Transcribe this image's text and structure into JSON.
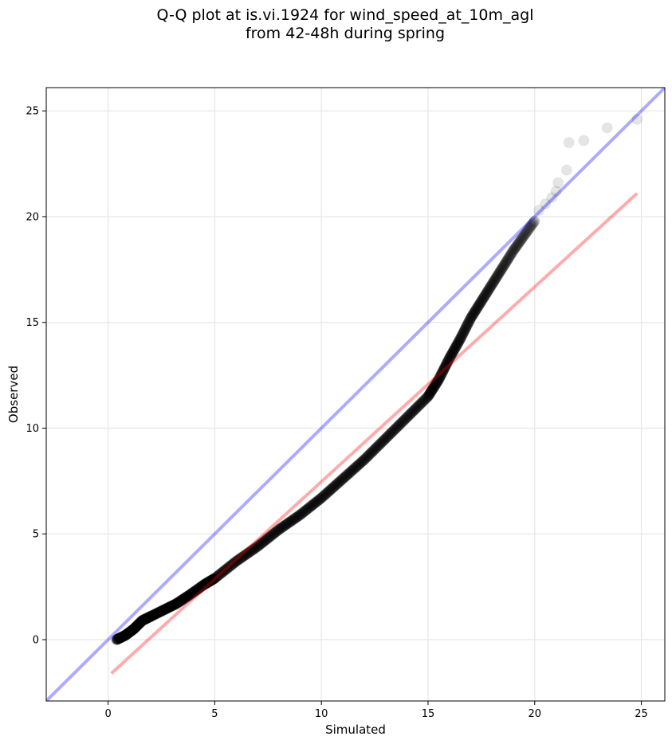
{
  "chart_data": {
    "type": "scatter",
    "title_line1": "Q-Q plot at is.vi.1924 for wind_speed_at_10m_agl",
    "title_line2": "from 42-48h during spring",
    "xlabel": "Simulated",
    "ylabel": "Observed",
    "xlim": [
      -2.9,
      26.1
    ],
    "ylim": [
      -2.9,
      26.1
    ],
    "xticks": [
      0,
      5,
      10,
      15,
      20,
      25
    ],
    "yticks": [
      0,
      5,
      10,
      15,
      20,
      25
    ],
    "grid": true,
    "point_color": "#000000",
    "identity_line": {
      "x": [
        -2.9,
        26.1
      ],
      "y": [
        -2.9,
        26.1
      ],
      "color": "#0000ff"
    },
    "fit_line": {
      "x": [
        0.15,
        24.8
      ],
      "y": [
        -1.6,
        21.1
      ],
      "color": "#ff0000"
    },
    "quantile_curve": {
      "x": [
        0.4,
        0.8,
        1.2,
        1.6,
        2.0,
        2.6,
        3.2,
        3.8,
        4.5,
        5.0,
        6.0,
        7.0,
        8.0,
        9.0,
        10.0,
        11.0,
        12.0,
        13.0,
        14.0,
        15.0,
        15.5,
        16.0,
        16.5,
        17.0,
        17.5,
        18.0,
        18.5,
        19.0,
        19.5,
        20.0
      ],
      "y": [
        0.0,
        0.2,
        0.5,
        0.9,
        1.1,
        1.4,
        1.7,
        2.1,
        2.6,
        2.9,
        3.7,
        4.4,
        5.2,
        5.9,
        6.7,
        7.6,
        8.5,
        9.5,
        10.5,
        11.5,
        12.3,
        13.3,
        14.2,
        15.2,
        16.0,
        16.8,
        17.6,
        18.4,
        19.1,
        19.8
      ]
    },
    "tail_points": {
      "x": [
        20.2,
        20.5,
        20.8,
        21.0,
        21.1,
        21.5,
        21.6,
        22.3,
        23.4,
        24.8
      ],
      "y": [
        20.3,
        20.6,
        20.9,
        21.2,
        21.6,
        22.2,
        23.5,
        23.6,
        24.2,
        24.6
      ]
    }
  }
}
